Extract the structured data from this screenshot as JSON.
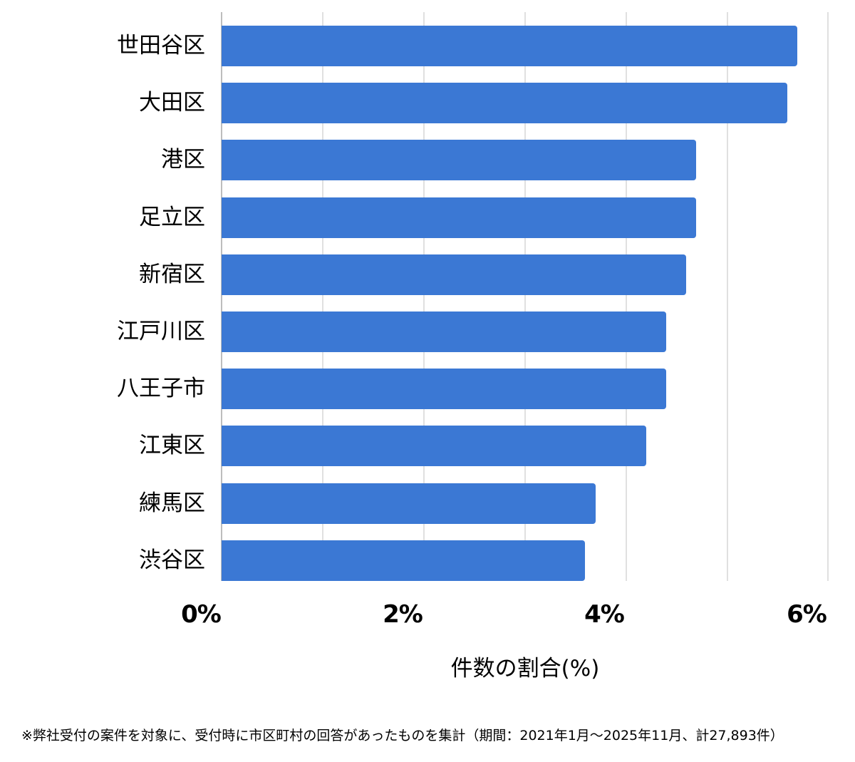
{
  "chart_data": {
    "type": "bar",
    "orientation": "horizontal",
    "title": "",
    "xlabel": "件数の割合(%)",
    "ylabel": "",
    "categories": [
      "世田谷区",
      "大田区",
      "港区",
      "足立区",
      "新宿区",
      "江戸川区",
      "八王子市",
      "江東区",
      "練馬区",
      "渋谷区"
    ],
    "values": [
      5.7,
      5.6,
      4.7,
      4.7,
      4.6,
      4.4,
      4.4,
      4.2,
      3.7,
      3.6
    ],
    "xlim": [
      0,
      6
    ],
    "x_ticks": [
      "0%",
      "2%",
      "4%",
      "6%"
    ],
    "grid": true,
    "legend": null,
    "bar_color": "#3b78d4",
    "footnote": "※弊社受付の案件を対象に、受付時に市区町村の回答があったものを集計（期間：2021年1月〜2025年11月、計27,893件）"
  },
  "axis": {
    "x_title": "件数の割合(%)",
    "ticks": [
      {
        "label": "0%",
        "value": 0
      },
      {
        "label": "2%",
        "value": 2
      },
      {
        "label": "4%",
        "value": 4
      },
      {
        "label": "6%",
        "value": 6
      }
    ]
  },
  "bars": [
    {
      "label": "世田谷区",
      "value": 5.7
    },
    {
      "label": "大田区",
      "value": 5.6
    },
    {
      "label": "港区",
      "value": 4.7
    },
    {
      "label": "足立区",
      "value": 4.7
    },
    {
      "label": "新宿区",
      "value": 4.6
    },
    {
      "label": "江戸川区",
      "value": 4.4
    },
    {
      "label": "八王子市",
      "value": 4.4
    },
    {
      "label": "江東区",
      "value": 4.2
    },
    {
      "label": "練馬区",
      "value": 3.7
    },
    {
      "label": "渋谷区",
      "value": 3.6
    }
  ],
  "footnote": "※弊社受付の案件を対象に、受付時に市区町村の回答があったものを集計（期間：2021年1月〜2025年11月、計27,893件）"
}
